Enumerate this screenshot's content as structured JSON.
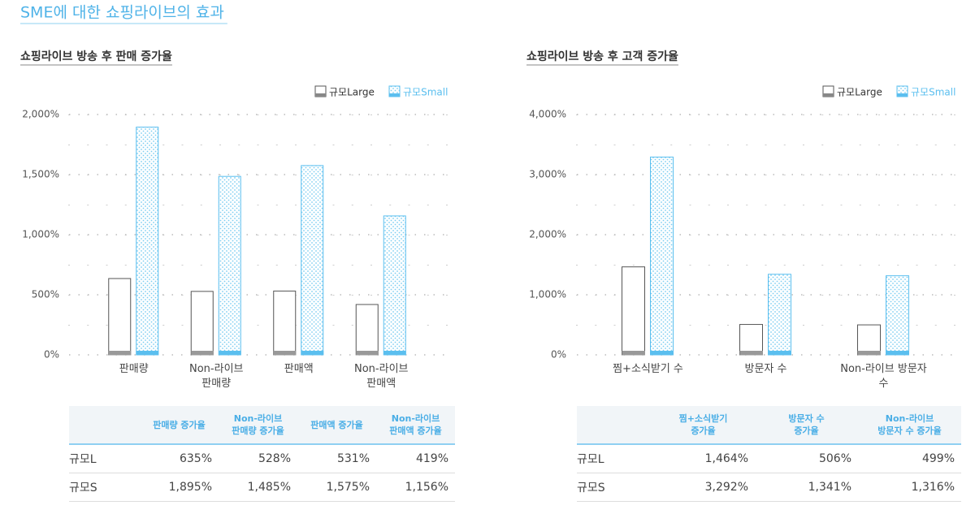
{
  "title": "SME에 대한 쇼핑라이브의 효과",
  "chart_data": [
    {
      "type": "bar",
      "title": "쇼핑라이브 방송 후 판매 증가율",
      "categories": [
        "판매량",
        "Non-라이브\n판매량",
        "판매액",
        "Non-라이브\n판매액"
      ],
      "series": [
        {
          "name": "규모Large",
          "color": "#555555",
          "values": [
            635,
            528,
            531,
            419
          ]
        },
        {
          "name": "규모Small",
          "color": "#5bbfef",
          "values": [
            1895,
            1485,
            1575,
            1156
          ]
        }
      ],
      "ylim": [
        0,
        2000
      ],
      "yticks": [
        {
          "value": 0,
          "label": "0%"
        },
        {
          "value": 500,
          "label": "500%"
        },
        {
          "value": 1000,
          "label": "1,000%"
        },
        {
          "value": 1500,
          "label": "1,500%"
        },
        {
          "value": 2000,
          "label": "2,000%"
        }
      ],
      "grid": true,
      "legend": "top-right"
    },
    {
      "type": "bar",
      "title": "쇼핑라이브 방송 후 고객 증가율",
      "categories": [
        "찜+소식받기 수",
        "방문자 수",
        "Non-라이브 방문자 수"
      ],
      "series": [
        {
          "name": "규모Large",
          "color": "#555555",
          "values": [
            1464,
            506,
            499
          ]
        },
        {
          "name": "규모Small",
          "color": "#5bbfef",
          "values": [
            3292,
            1341,
            1316
          ]
        }
      ],
      "ylim": [
        0,
        4000
      ],
      "yticks": [
        {
          "value": 0,
          "label": "0%"
        },
        {
          "value": 1000,
          "label": "1,000%"
        },
        {
          "value": 2000,
          "label": "2,000%"
        },
        {
          "value": 3000,
          "label": "3,000%"
        },
        {
          "value": 4000,
          "label": "4,000%"
        }
      ],
      "grid": true,
      "legend": "top-right"
    }
  ],
  "tables": [
    {
      "columns": [
        "판매량 증가율",
        "Non-라이브\n판매량 증가율",
        "판매액 증가율",
        "Non-라이브\n판매액 증가율"
      ],
      "rows": [
        {
          "label": "규모L",
          "cells": [
            "635%",
            "528%",
            "531%",
            "419%"
          ]
        },
        {
          "label": "규모S",
          "cells": [
            "1,895%",
            "1,485%",
            "1,575%",
            "1,156%"
          ]
        }
      ]
    },
    {
      "columns": [
        "찜+소식받기\n증가율",
        "방문자 수\n증가율",
        "Non-라이브\n방문자 수 증가율"
      ],
      "rows": [
        {
          "label": "규모L",
          "cells": [
            "1,464%",
            "506%",
            "499%"
          ]
        },
        {
          "label": "규모S",
          "cells": [
            "3,292%",
            "1,341%",
            "1,316%"
          ]
        }
      ]
    }
  ]
}
